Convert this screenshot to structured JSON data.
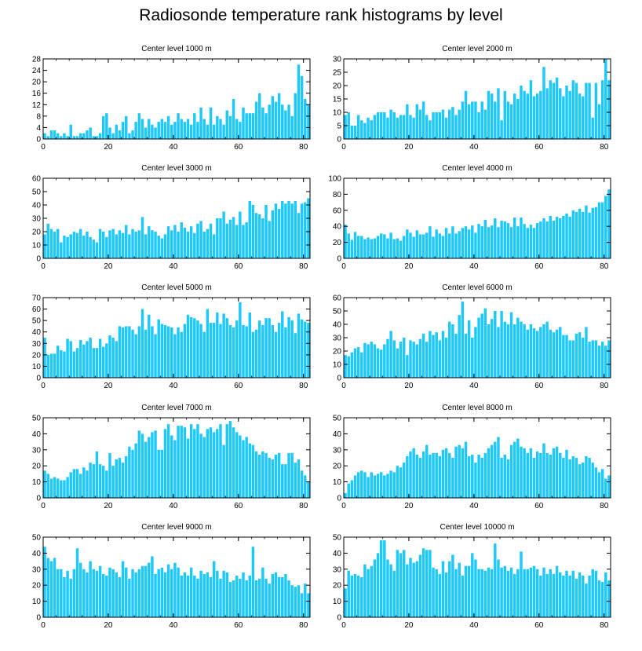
{
  "figure": {
    "title": "Radiosonde temperature rank histograms by level",
    "bar_color": "#1EC8F8",
    "axis_color": "#000000"
  },
  "chart_data": [
    {
      "type": "bar",
      "title": "Center level 1000 m",
      "x_start": 0,
      "xlim": [
        0,
        82
      ],
      "ylim": [
        0,
        28
      ],
      "x_ticks": [
        0,
        20,
        40,
        60,
        80
      ],
      "y_ticks": [
        0,
        4,
        8,
        12,
        16,
        20,
        24,
        28
      ],
      "grid": false,
      "values": [
        2,
        1,
        3,
        3,
        2,
        1,
        2,
        1,
        5,
        1,
        1,
        2,
        2,
        3,
        4,
        1,
        1,
        2,
        8,
        9,
        4,
        2,
        5,
        3,
        6,
        8,
        2,
        3,
        6,
        9,
        7,
        4,
        7,
        5,
        4,
        6,
        7,
        6,
        8,
        5,
        6,
        9,
        7,
        6,
        7,
        5,
        9,
        6,
        11,
        7,
        5,
        11,
        5,
        8,
        7,
        5,
        10,
        8,
        14,
        7,
        6,
        11,
        9,
        9,
        9,
        13,
        16,
        11,
        9,
        12,
        15,
        13,
        16,
        12,
        10,
        12,
        8,
        16,
        26,
        22,
        14,
        12
      ]
    },
    {
      "type": "bar",
      "title": "Center level 2000 m",
      "x_start": 0,
      "xlim": [
        0,
        82
      ],
      "ylim": [
        0,
        30
      ],
      "x_ticks": [
        0,
        20,
        40,
        60,
        80
      ],
      "y_ticks": [
        0,
        5,
        10,
        15,
        20,
        25,
        30
      ],
      "grid": false,
      "values": [
        9,
        10,
        5,
        5,
        9,
        7,
        6,
        8,
        7,
        9,
        10,
        10,
        10,
        8,
        11,
        10,
        8,
        9,
        9,
        13,
        9,
        8,
        13,
        11,
        14,
        9,
        7,
        10,
        10,
        10,
        11,
        8,
        11,
        12,
        9,
        11,
        14,
        18,
        13,
        14,
        14,
        10,
        14,
        11,
        18,
        17,
        14,
        19,
        7,
        18,
        14,
        13,
        17,
        15,
        20,
        18,
        17,
        22,
        16,
        17,
        18,
        27,
        19,
        22,
        21,
        23,
        19,
        16,
        20,
        18,
        22,
        21,
        17,
        16,
        21,
        21,
        8,
        21,
        13,
        22,
        30,
        22,
        28
      ]
    },
    {
      "type": "bar",
      "title": "Center level 3000 m",
      "x_start": 0,
      "xlim": [
        0,
        82
      ],
      "ylim": [
        0,
        60
      ],
      "x_ticks": [
        0,
        20,
        40,
        60,
        80
      ],
      "y_ticks": [
        0,
        10,
        20,
        30,
        40,
        50,
        60
      ],
      "grid": false,
      "values": [
        18,
        26,
        22,
        20,
        22,
        12,
        17,
        16,
        18,
        20,
        19,
        22,
        17,
        20,
        16,
        14,
        12,
        22,
        20,
        16,
        21,
        22,
        18,
        21,
        19,
        25,
        18,
        22,
        20,
        21,
        31,
        18,
        24,
        21,
        20,
        17,
        15,
        18,
        24,
        21,
        25,
        20,
        27,
        23,
        20,
        24,
        19,
        26,
        28,
        20,
        22,
        26,
        18,
        30,
        30,
        35,
        26,
        29,
        31,
        25,
        35,
        25,
        27,
        43,
        40,
        34,
        33,
        30,
        40,
        28,
        36,
        41,
        37,
        43,
        41,
        43,
        41,
        43,
        34,
        41,
        42,
        45,
        56
      ]
    },
    {
      "type": "bar",
      "title": "Center level 4000 m",
      "x_start": 0,
      "xlim": [
        0,
        82
      ],
      "ylim": [
        0,
        100
      ],
      "x_ticks": [
        0,
        20,
        40,
        60,
        80
      ],
      "y_ticks": [
        0,
        20,
        40,
        60,
        80,
        100
      ],
      "grid": false,
      "values": [
        42,
        31,
        23,
        33,
        28,
        28,
        24,
        26,
        24,
        25,
        28,
        31,
        30,
        25,
        32,
        24,
        25,
        22,
        28,
        36,
        32,
        27,
        35,
        30,
        30,
        32,
        40,
        27,
        36,
        31,
        28,
        38,
        31,
        40,
        31,
        34,
        38,
        40,
        36,
        41,
        32,
        43,
        40,
        48,
        39,
        41,
        50,
        39,
        47,
        46,
        44,
        39,
        51,
        40,
        51,
        43,
        38,
        42,
        38,
        44,
        46,
        50,
        46,
        53,
        47,
        52,
        50,
        53,
        56,
        52,
        60,
        58,
        62,
        58,
        66,
        57,
        63,
        64,
        70,
        70,
        78,
        86,
        86
      ]
    },
    {
      "type": "bar",
      "title": "Center level 5000 m",
      "x_start": 0,
      "xlim": [
        0,
        82
      ],
      "ylim": [
        0,
        70
      ],
      "x_ticks": [
        0,
        20,
        40,
        60,
        80
      ],
      "y_ticks": [
        0,
        10,
        20,
        30,
        40,
        50,
        60,
        70
      ],
      "grid": false,
      "values": [
        35,
        20,
        21,
        21,
        28,
        24,
        23,
        34,
        32,
        23,
        26,
        33,
        29,
        32,
        35,
        26,
        26,
        34,
        27,
        30,
        37,
        35,
        32,
        45,
        44,
        45,
        45,
        42,
        38,
        45,
        60,
        42,
        55,
        45,
        38,
        51,
        47,
        46,
        45,
        44,
        38,
        44,
        40,
        47,
        55,
        53,
        52,
        50,
        47,
        40,
        60,
        48,
        48,
        57,
        47,
        56,
        52,
        46,
        44,
        50,
        66,
        46,
        45,
        57,
        40,
        42,
        50,
        46,
        52,
        52,
        46,
        40,
        48,
        58,
        44,
        53,
        50,
        39,
        56,
        51,
        49,
        48,
        47
      ]
    },
    {
      "type": "bar",
      "title": "Center level 6000 m",
      "x_start": 0,
      "xlim": [
        0,
        82
      ],
      "ylim": [
        0,
        60
      ],
      "x_ticks": [
        0,
        20,
        40,
        60,
        80
      ],
      "y_ticks": [
        0,
        10,
        20,
        30,
        40,
        50,
        60
      ],
      "grid": false,
      "values": [
        17,
        16,
        19,
        22,
        23,
        19,
        26,
        25,
        27,
        25,
        22,
        21,
        25,
        29,
        35,
        28,
        22,
        27,
        30,
        17,
        28,
        27,
        25,
        29,
        33,
        27,
        35,
        32,
        34,
        28,
        35,
        30,
        42,
        40,
        33,
        47,
        57,
        33,
        43,
        30,
        38,
        45,
        48,
        52,
        40,
        44,
        50,
        38,
        50,
        42,
        40,
        49,
        40,
        45,
        42,
        40,
        36,
        40,
        37,
        35,
        38,
        40,
        42,
        36,
        34,
        36,
        38,
        32,
        32,
        28,
        28,
        33,
        34,
        30,
        38,
        27,
        28,
        28,
        24,
        27,
        24,
        28,
        22
      ]
    },
    {
      "type": "bar",
      "title": "Center level 7000 m",
      "x_start": 0,
      "xlim": [
        0,
        82
      ],
      "ylim": [
        0,
        50
      ],
      "x_ticks": [
        0,
        20,
        40,
        60,
        80
      ],
      "y_ticks": [
        0,
        10,
        20,
        30,
        40,
        50
      ],
      "grid": false,
      "values": [
        17,
        15,
        12,
        13,
        12,
        11,
        11,
        13,
        16,
        18,
        18,
        15,
        19,
        17,
        22,
        21,
        29,
        21,
        20,
        17,
        28,
        20,
        24,
        25,
        22,
        26,
        32,
        30,
        34,
        42,
        40,
        35,
        38,
        41,
        42,
        30,
        30,
        43,
        46,
        39,
        36,
        45,
        45,
        44,
        37,
        46,
        43,
        46,
        40,
        38,
        43,
        44,
        41,
        43,
        46,
        33,
        46,
        48,
        44,
        41,
        39,
        36,
        38,
        34,
        33,
        29,
        27,
        29,
        28,
        25,
        24,
        27,
        28,
        21,
        21,
        28,
        28,
        22,
        24,
        17,
        14,
        10,
        8
      ]
    },
    {
      "type": "bar",
      "title": "Center level 8000 m",
      "x_start": 0,
      "xlim": [
        0,
        82
      ],
      "ylim": [
        0,
        50
      ],
      "x_ticks": [
        0,
        20,
        40,
        60,
        80
      ],
      "y_ticks": [
        0,
        10,
        20,
        30,
        40,
        50
      ],
      "grid": false,
      "values": [
        3,
        9,
        11,
        14,
        16,
        17,
        16,
        13,
        16,
        14,
        15,
        16,
        14,
        15,
        17,
        16,
        20,
        19,
        22,
        26,
        29,
        31,
        27,
        25,
        29,
        33,
        27,
        28,
        28,
        26,
        30,
        31,
        28,
        25,
        32,
        33,
        31,
        35,
        26,
        27,
        22,
        27,
        25,
        28,
        31,
        33,
        35,
        38,
        25,
        27,
        24,
        33,
        35,
        37,
        32,
        31,
        28,
        31,
        25,
        29,
        28,
        34,
        28,
        27,
        31,
        32,
        28,
        25,
        30,
        24,
        26,
        25,
        21,
        22,
        26,
        25,
        22,
        19,
        16,
        18,
        12,
        14,
        14
      ]
    },
    {
      "type": "bar",
      "title": "Center level 9000 m",
      "x_start": 0,
      "xlim": [
        0,
        82
      ],
      "ylim": [
        0,
        50
      ],
      "x_ticks": [
        0,
        20,
        40,
        60,
        80
      ],
      "y_ticks": [
        0,
        10,
        20,
        30,
        40,
        50
      ],
      "grid": false,
      "values": [
        44,
        37,
        35,
        37,
        30,
        30,
        25,
        29,
        24,
        30,
        43,
        34,
        30,
        28,
        35,
        30,
        29,
        32,
        27,
        26,
        31,
        30,
        28,
        25,
        35,
        31,
        24,
        30,
        28,
        30,
        32,
        32,
        34,
        38,
        27,
        30,
        31,
        28,
        33,
        30,
        34,
        31,
        26,
        28,
        26,
        31,
        26,
        24,
        29,
        27,
        28,
        25,
        35,
        29,
        24,
        29,
        28,
        22,
        23,
        26,
        24,
        28,
        23,
        26,
        44,
        23,
        24,
        31,
        24,
        21,
        27,
        28,
        25,
        25,
        27,
        23,
        20,
        19,
        20,
        15,
        21,
        15,
        16
      ]
    },
    {
      "type": "bar",
      "title": "Center level 10000 m",
      "x_start": 0,
      "xlim": [
        0,
        82
      ],
      "ylim": [
        0,
        50
      ],
      "x_ticks": [
        0,
        20,
        40,
        60,
        80
      ],
      "y_ticks": [
        0,
        10,
        20,
        30,
        40,
        50
      ],
      "grid": false,
      "values": [
        18,
        29,
        26,
        27,
        26,
        25,
        33,
        30,
        32,
        36,
        40,
        48,
        48,
        36,
        33,
        29,
        42,
        40,
        42,
        33,
        37,
        34,
        35,
        39,
        43,
        42,
        42,
        31,
        30,
        27,
        35,
        28,
        35,
        39,
        30,
        34,
        26,
        32,
        32,
        40,
        36,
        30,
        30,
        29,
        31,
        30,
        46,
        36,
        31,
        32,
        29,
        31,
        27,
        30,
        41,
        30,
        30,
        31,
        32,
        30,
        26,
        31,
        27,
        30,
        27,
        32,
        28,
        26,
        29,
        26,
        29,
        24,
        28,
        26,
        21,
        26,
        30,
        29,
        23,
        22,
        28,
        23,
        33,
        34
      ]
    }
  ]
}
